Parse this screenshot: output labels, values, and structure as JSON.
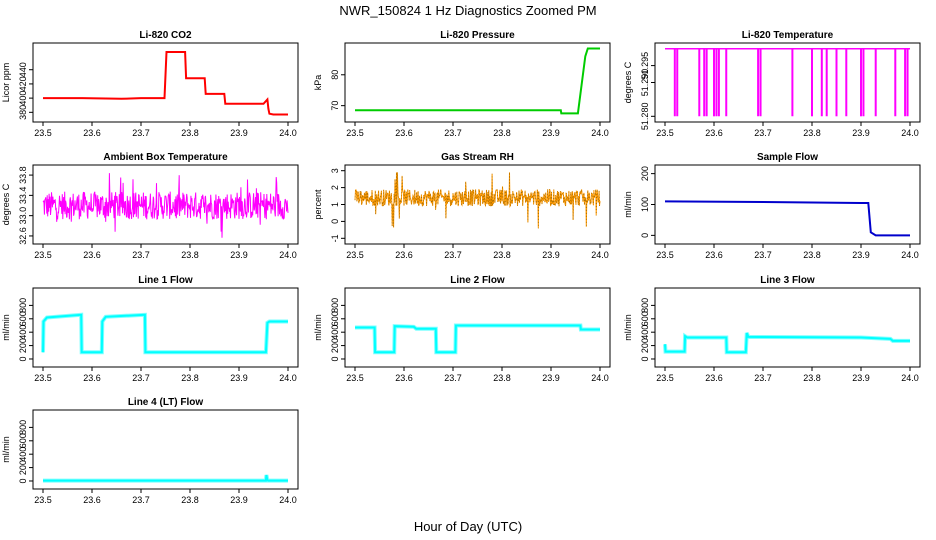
{
  "figure": {
    "title": "NWR_150824  1 Hz Diagnostics Zoomed PM",
    "xlabel": "Hour of Day (UTC)"
  },
  "chart_data": [
    {
      "id": "co2",
      "type": "line",
      "title": "Li-820 CO2",
      "ylabel": "Licor ppm",
      "color": "#ff0000",
      "x_ticks": [
        "23.5",
        "23.6",
        "23.7",
        "23.8",
        "23.9",
        "24.0"
      ],
      "xlim": [
        23.5,
        24.0
      ],
      "y_ticks": [
        "380",
        "400",
        "420",
        "440"
      ],
      "y_tick_values": [
        380,
        400,
        420,
        440
      ],
      "ylim": [
        372,
        472
      ],
      "series": [
        {
          "x": [
            23.5,
            23.58,
            23.66,
            23.7,
            23.748,
            23.752,
            23.79,
            23.792,
            23.83,
            23.832,
            23.87,
            23.872,
            23.95,
            23.958,
            23.96,
            23.962,
            23.97,
            24.0
          ],
          "y": [
            400,
            400,
            399,
            400,
            400,
            465,
            465,
            428,
            428,
            406,
            406,
            392,
            392,
            398,
            385,
            378,
            377,
            377
          ]
        }
      ]
    },
    {
      "id": "pressure",
      "type": "line",
      "title": "Li-820 Pressure",
      "ylabel": "kPa",
      "color": "#00cc00",
      "x_ticks": [
        "23.5",
        "23.6",
        "23.7",
        "23.8",
        "23.9",
        "24.0"
      ],
      "xlim": [
        23.5,
        24.0
      ],
      "y_ticks": [
        "70",
        "80"
      ],
      "y_tick_values": [
        70,
        80
      ],
      "ylim": [
        66,
        89
      ],
      "series": [
        {
          "x": [
            23.5,
            23.92,
            23.921,
            23.955,
            23.97,
            23.975,
            24.0
          ],
          "y": [
            68.5,
            68.5,
            67.5,
            67.5,
            86,
            88.5,
            88.5
          ]
        }
      ]
    },
    {
      "id": "temperature",
      "type": "line",
      "title": "Li-820 Temperature",
      "ylabel": "degrees C",
      "color": "#ff00ff",
      "x_ticks": [
        "23.5",
        "23.6",
        "23.7",
        "23.8",
        "23.9",
        "24.0"
      ],
      "xlim": [
        23.5,
        24.0
      ],
      "y_ticks": [
        "51.280",
        "51.290",
        "51.295"
      ],
      "y_tick_values": [
        51.28,
        51.29,
        51.295
      ],
      "ylim": [
        51.2795,
        51.3005
      ],
      "baseline": 51.3,
      "dips_x": [
        23.52,
        23.525,
        23.57,
        23.58,
        23.585,
        23.6,
        23.605,
        23.61,
        23.625,
        23.69,
        23.695,
        23.76,
        23.8,
        23.82,
        23.83,
        23.85,
        23.87,
        23.9,
        23.905,
        23.93,
        23.97,
        23.99,
        23.995
      ],
      "dip_value": 51.28
    },
    {
      "id": "ambient",
      "type": "line",
      "title": "Ambient Box Temperature",
      "ylabel": "degrees C",
      "color": "#ff00ff",
      "x_ticks": [
        "23.5",
        "23.6",
        "23.7",
        "23.8",
        "23.9",
        "24.0"
      ],
      "xlim": [
        23.5,
        24.0
      ],
      "y_ticks": [
        "32.6",
        "33.0",
        "33.4",
        "33.8"
      ],
      "y_tick_values": [
        32.6,
        33.0,
        33.4,
        33.8
      ],
      "ylim": [
        32.52,
        33.92
      ],
      "noise": {
        "center": 33.2,
        "spread": 0.55,
        "min": 32.55,
        "max": 33.85
      }
    },
    {
      "id": "rh",
      "type": "line",
      "title": "Gas Stream RH",
      "ylabel": "percent",
      "color": "#ff9900",
      "x_ticks": [
        "23.5",
        "23.6",
        "23.7",
        "23.8",
        "23.9",
        "24.0"
      ],
      "xlim": [
        23.5,
        24.0
      ],
      "y_ticks": [
        "-1",
        "0",
        "1",
        "2",
        "3"
      ],
      "y_tick_values": [
        -1,
        0,
        1,
        2,
        3
      ],
      "ylim": [
        -1.1,
        3.1
      ],
      "noise": {
        "center": 1.4,
        "spread": 1.0,
        "min": -0.9,
        "max": 2.9
      }
    },
    {
      "id": "sample",
      "type": "line",
      "title": "Sample Flow",
      "ylabel": "ml/min",
      "color": "#0000cc",
      "x_ticks": [
        "23.5",
        "23.6",
        "23.7",
        "23.8",
        "23.9",
        "24.0"
      ],
      "xlim": [
        23.5,
        24.0
      ],
      "y_ticks": [
        "0",
        "100",
        "200"
      ],
      "y_tick_values": [
        0,
        100,
        200
      ],
      "ylim": [
        -15,
        215
      ],
      "series": [
        {
          "x": [
            23.5,
            23.7,
            23.9,
            23.915,
            23.92,
            23.93,
            24.0
          ],
          "y": [
            110,
            108,
            105,
            105,
            10,
            0,
            0
          ]
        }
      ]
    },
    {
      "id": "line1",
      "type": "line",
      "title": "Line 1 Flow",
      "ylabel": "ml/min",
      "color": "#00ffff",
      "x_ticks": [
        "23.5",
        "23.6",
        "23.7",
        "23.8",
        "23.9",
        "24.0"
      ],
      "xlim": [
        23.5,
        24.0
      ],
      "y_ticks": [
        "0",
        "200",
        "400",
        "600",
        "800"
      ],
      "y_tick_values": [
        0,
        200,
        400,
        600,
        800
      ],
      "ylim": [
        -60,
        1000
      ],
      "series": [
        {
          "x": [
            23.5,
            23.501,
            23.508,
            23.578,
            23.579,
            23.62,
            23.621,
            23.628,
            23.708,
            23.709,
            23.75,
            23.955,
            23.958,
            23.962,
            24.0
          ],
          "y": [
            100,
            560,
            620,
            660,
            100,
            100,
            560,
            630,
            660,
            100,
            100,
            100,
            540,
            560,
            560
          ]
        }
      ]
    },
    {
      "id": "line2",
      "type": "line",
      "title": "Line 2 Flow",
      "ylabel": "ml/min",
      "color": "#00ffff",
      "x_ticks": [
        "23.5",
        "23.6",
        "23.7",
        "23.8",
        "23.9",
        "24.0"
      ],
      "xlim": [
        23.5,
        24.0
      ],
      "y_ticks": [
        "0",
        "200",
        "400",
        "600",
        "800"
      ],
      "y_tick_values": [
        0,
        200,
        400,
        600,
        800
      ],
      "ylim": [
        -60,
        1000
      ],
      "series": [
        {
          "x": [
            23.5,
            23.54,
            23.541,
            23.58,
            23.581,
            23.62,
            23.625,
            23.665,
            23.666,
            23.705,
            23.706,
            23.96,
            23.961,
            24.0
          ],
          "y": [
            470,
            470,
            100,
            100,
            490,
            480,
            450,
            450,
            100,
            100,
            500,
            500,
            440,
            440
          ]
        }
      ]
    },
    {
      "id": "line3",
      "type": "line",
      "title": "Line 3 Flow",
      "ylabel": "ml/min",
      "color": "#00ffff",
      "x_ticks": [
        "23.5",
        "23.6",
        "23.7",
        "23.8",
        "23.9",
        "24.0"
      ],
      "xlim": [
        23.5,
        24.0
      ],
      "y_ticks": [
        "0",
        "200",
        "400",
        "600",
        "800"
      ],
      "y_tick_values": [
        0,
        200,
        400,
        600,
        800
      ],
      "ylim": [
        -60,
        1000
      ],
      "series": [
        {
          "x": [
            23.5,
            23.501,
            23.54,
            23.541,
            23.545,
            23.625,
            23.626,
            23.665,
            23.667,
            23.67,
            23.9,
            23.96,
            23.965,
            24.0
          ],
          "y": [
            220,
            110,
            110,
            340,
            320,
            320,
            100,
            100,
            390,
            330,
            320,
            300,
            270,
            270
          ]
        }
      ]
    },
    {
      "id": "line4",
      "type": "line",
      "title": "Line 4 (LT) Flow",
      "ylabel": "ml/min",
      "color": "#00ffff",
      "x_ticks": [
        "23.5",
        "23.6",
        "23.7",
        "23.8",
        "23.9",
        "24.0"
      ],
      "xlim": [
        23.5,
        24.0
      ],
      "y_ticks": [
        "0",
        "200",
        "400",
        "600",
        "800"
      ],
      "y_tick_values": [
        0,
        200,
        400,
        600,
        800
      ],
      "ylim": [
        -60,
        1000
      ],
      "series": [
        {
          "x": [
            23.5,
            23.955,
            23.956,
            23.958,
            23.96,
            24.0
          ],
          "y": [
            5,
            5,
            90,
            10,
            5,
            5
          ]
        }
      ]
    }
  ]
}
